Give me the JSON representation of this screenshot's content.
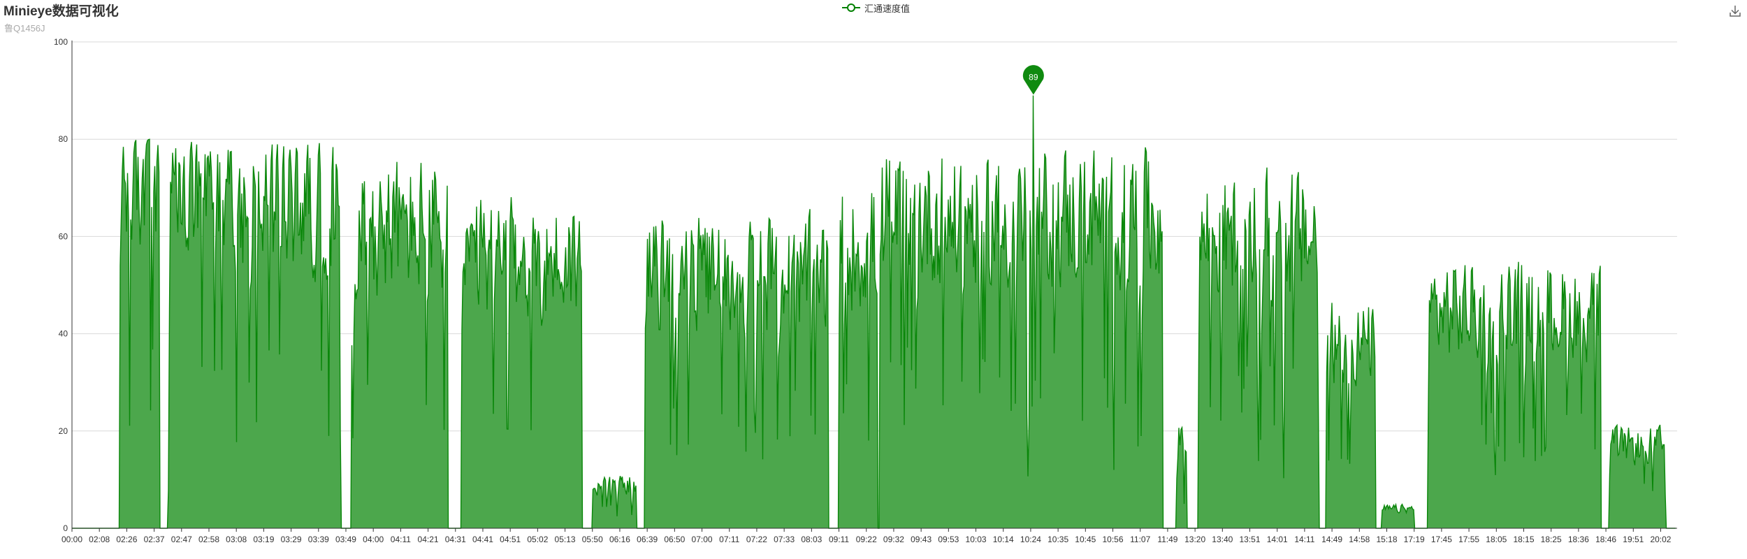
{
  "title": "Minieye数据可视化",
  "subtitle": "鲁Q1456J",
  "legend": {
    "label": "汇通速度值",
    "color": "#008000"
  },
  "toolbox": {
    "icon": "download-icon"
  },
  "colors": {
    "line": "#0a870a",
    "area": "#4ca74c",
    "grid": "#d9d9d9",
    "axis": "#333333",
    "marker": "#0f8a0f"
  },
  "chart_data": {
    "type": "area",
    "title": "Minieye数据可视化",
    "subtitle": "鲁Q1456J",
    "xlabel": "",
    "ylabel": "",
    "ylim": [
      0,
      100
    ],
    "yticks": [
      0,
      20,
      40,
      60,
      80,
      100
    ],
    "x_tick_labels": [
      "00:00",
      "02:08",
      "02:26",
      "02:37",
      "02:47",
      "02:58",
      "03:08",
      "03:19",
      "03:29",
      "03:39",
      "03:49",
      "04:00",
      "04:11",
      "04:21",
      "04:31",
      "04:41",
      "04:51",
      "05:02",
      "05:13",
      "05:50",
      "06:16",
      "06:39",
      "06:50",
      "07:00",
      "07:11",
      "07:22",
      "07:33",
      "08:03",
      "09:11",
      "09:22",
      "09:32",
      "09:43",
      "09:53",
      "10:03",
      "10:14",
      "10:24",
      "10:35",
      "10:45",
      "10:56",
      "11:07",
      "11:49",
      "13:20",
      "13:40",
      "13:51",
      "14:01",
      "14:11",
      "14:49",
      "14:58",
      "15:18",
      "17:19",
      "17:45",
      "17:55",
      "18:05",
      "18:15",
      "18:25",
      "18:36",
      "18:46",
      "19:51",
      "20:02"
    ],
    "grid": true,
    "legend_position": "top-center",
    "series": [
      {
        "name": "汇通速度值",
        "segments": [
          {
            "start": 0,
            "end": 1.6,
            "level": 0
          },
          {
            "start": 1.75,
            "end": 3.2,
            "level": 72
          },
          {
            "start": 3.5,
            "end": 9.8,
            "level": 68
          },
          {
            "start": 10.2,
            "end": 13.7,
            "level": 62
          },
          {
            "start": 14.2,
            "end": 18.6,
            "level": 55
          },
          {
            "start": 19.0,
            "end": 20.6,
            "level": 9
          },
          {
            "start": 20.9,
            "end": 27.6,
            "level": 52
          },
          {
            "start": 28.0,
            "end": 29.4,
            "level": 58
          },
          {
            "start": 29.5,
            "end": 39.8,
            "level": 64
          },
          {
            "start": 40.3,
            "end": 40.7,
            "level": 18
          },
          {
            "start": 41.1,
            "end": 45.5,
            "level": 60
          },
          {
            "start": 45.8,
            "end": 47.6,
            "level": 38
          },
          {
            "start": 47.8,
            "end": 49.0,
            "level": 4
          },
          {
            "start": 49.5,
            "end": 55.8,
            "level": 45
          },
          {
            "start": 56.1,
            "end": 58.2,
            "level": 17
          }
        ],
        "max_point": {
          "x": 35.1,
          "value": 89
        }
      }
    ]
  }
}
